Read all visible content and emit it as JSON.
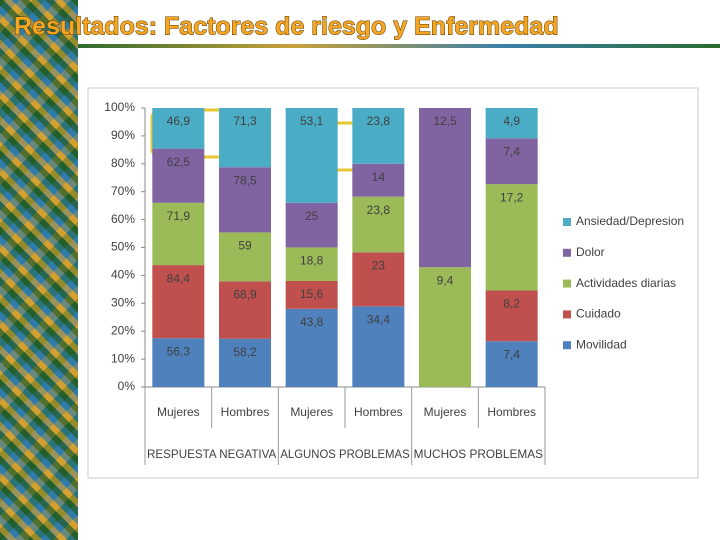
{
  "chart_data": {
    "type": "bar",
    "stacked_percent": true,
    "title": "Resultados: Factores de riesgo y Enfermedad",
    "categories": [
      "Mujeres",
      "Hombres",
      "Mujeres",
      "Hombres",
      "Mujeres",
      "Hombres"
    ],
    "groups": [
      "RESPUESTA NEGATIVA",
      "ALGUNOS PROBLEMAS",
      "MUCHOS PROBLEMAS"
    ],
    "series": [
      {
        "name": "Movilidad",
        "color": "#4f81bd",
        "values": [
          56.3,
          58.2,
          43.8,
          34.4,
          null,
          7.4
        ],
        "value_labels": [
          "56,3",
          "58,2",
          "43,8",
          "34,4",
          null,
          "7,4"
        ]
      },
      {
        "name": "Cuidado",
        "color": "#c0504d",
        "values": [
          84.4,
          68.9,
          15.6,
          23,
          null,
          8.2
        ],
        "value_labels": [
          "84,4",
          "68,9",
          "15,6",
          "23",
          null,
          "8,2"
        ]
      },
      {
        "name": "Actividades diarias",
        "color": "#9bbb59",
        "values": [
          71.9,
          59,
          18.8,
          23.8,
          9.4,
          17.2
        ],
        "value_labels": [
          "71,9",
          "59",
          "18,8",
          "23,8",
          "9,4",
          "17,2"
        ]
      },
      {
        "name": "Dolor",
        "color": "#8064a2",
        "values": [
          62.5,
          78.5,
          25,
          14,
          12.5,
          7.4
        ],
        "value_labels": [
          "62,5",
          "78,5",
          "25",
          "14",
          "12,5",
          "7,4"
        ]
      },
      {
        "name": "Ansiedad/Depresion",
        "color": "#4bacc6",
        "values": [
          46.9,
          71.3,
          53.1,
          23.8,
          null,
          4.9
        ],
        "value_labels": [
          "46,9",
          "71,3",
          "53,1",
          "23,8",
          null,
          "4,9"
        ]
      }
    ],
    "ylim": [
      0,
      100
    ],
    "yticks": [
      {
        "value": 0,
        "label": "0%"
      },
      {
        "value": 10,
        "label": "10%"
      },
      {
        "value": 20,
        "label": "20%"
      },
      {
        "value": 30,
        "label": "30%"
      },
      {
        "value": 40,
        "label": "40%"
      },
      {
        "value": 50,
        "label": "50%"
      },
      {
        "value": 60,
        "label": "60%"
      },
      {
        "value": 70,
        "label": "70%"
      },
      {
        "value": 80,
        "label": "80%"
      },
      {
        "value": 90,
        "label": "90%"
      },
      {
        "value": 100,
        "label": "100%"
      }
    ],
    "grid": false,
    "legend": "right"
  }
}
